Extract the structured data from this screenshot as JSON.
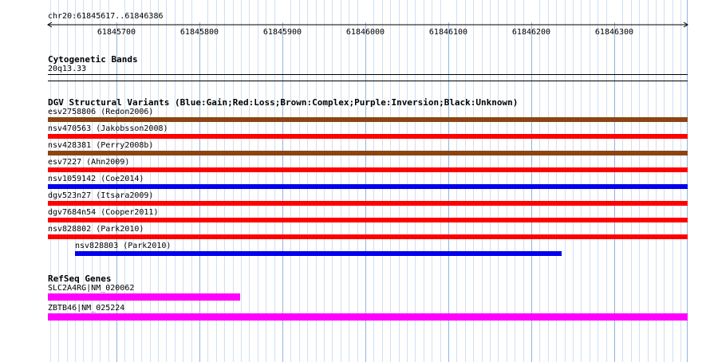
{
  "coordinates": "chr20:61845617..61846386",
  "ruler": {
    "ticks": [
      "61845700",
      "61845800",
      "61845900",
      "61846000",
      "61846100",
      "61846200",
      "61846300"
    ]
  },
  "cytoband": {
    "title": "Cytogenetic Bands",
    "band": "20q13.33"
  },
  "dgv": {
    "title": "DGV Structural Variants (Blue:Gain;Red:Loss;Brown:Complex;Purple:Inversion;Black:Unknown)",
    "features": [
      {
        "label": "esv2758806 (Redon2006)",
        "type": "Complex",
        "color": "#8B4513"
      },
      {
        "label": "nsv470563 (Jakobsson2008)",
        "type": "Loss",
        "color": "#FF0000"
      },
      {
        "label": "nsv428381 (Perry2008b)",
        "type": "Complex",
        "color": "#8B4513"
      },
      {
        "label": "esv7227 (Ahn2009)",
        "type": "Loss",
        "color": "#FF0000"
      },
      {
        "label": "nsv1059142 (Coe2014)",
        "type": "Gain",
        "color": "#0000EE"
      },
      {
        "label": "dgv523n27 (Itsara2009)",
        "type": "Loss",
        "color": "#FF0000"
      },
      {
        "label": "dgv7684n54 (Cooper2011)",
        "type": "Loss",
        "color": "#FF0000"
      },
      {
        "label": "nsv828802 (Park2010)",
        "type": "Loss",
        "color": "#FF0000"
      },
      {
        "label": "nsv828803 (Park2010)",
        "type": "Gain",
        "color": "#0000EE"
      }
    ]
  },
  "refseq": {
    "title": "RefSeq Genes",
    "features": [
      {
        "label": "SLC2A4RG|NM_020062",
        "color": "#FF00FF"
      },
      {
        "label": "ZBTB46|NM_025224",
        "color": "#FF00FF"
      }
    ]
  }
}
